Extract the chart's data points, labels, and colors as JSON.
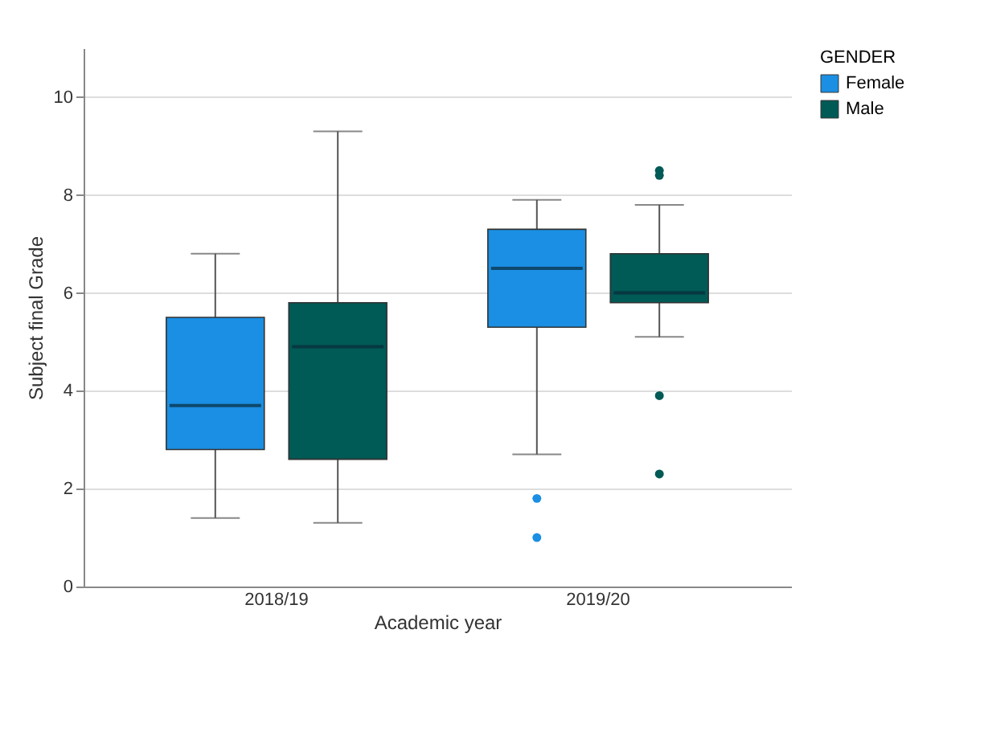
{
  "chart_data": {
    "type": "box",
    "xlabel": "Academic year",
    "ylabel": "Subject final Grade",
    "legend_title": "GENDER",
    "categories": [
      "2018/19",
      "2019/20"
    ],
    "series": [
      {
        "name": "Female",
        "color": "#1a8fe3",
        "boxes": [
          {
            "low": 1.4,
            "q1": 2.8,
            "median": 3.7,
            "q3": 5.5,
            "high": 6.8
          },
          {
            "low": 2.7,
            "q1": 5.3,
            "median": 6.5,
            "q3": 7.3,
            "high": 7.9,
            "outliers": [
              1.8,
              1.0
            ]
          }
        ]
      },
      {
        "name": "Male",
        "color": "#005a56",
        "boxes": [
          {
            "low": 1.3,
            "q1": 2.6,
            "median": 4.9,
            "q3": 5.8,
            "high": 9.3
          },
          {
            "low": 5.1,
            "q1": 5.8,
            "median": 6.0,
            "q3": 6.8,
            "high": 7.8,
            "outliers": [
              8.5,
              8.4,
              3.9,
              2.3
            ]
          }
        ]
      }
    ],
    "ylim": [
      0,
      11
    ],
    "yticks": [
      0,
      2,
      4,
      6,
      8,
      10
    ],
    "grid": "y",
    "legend": "top right"
  }
}
